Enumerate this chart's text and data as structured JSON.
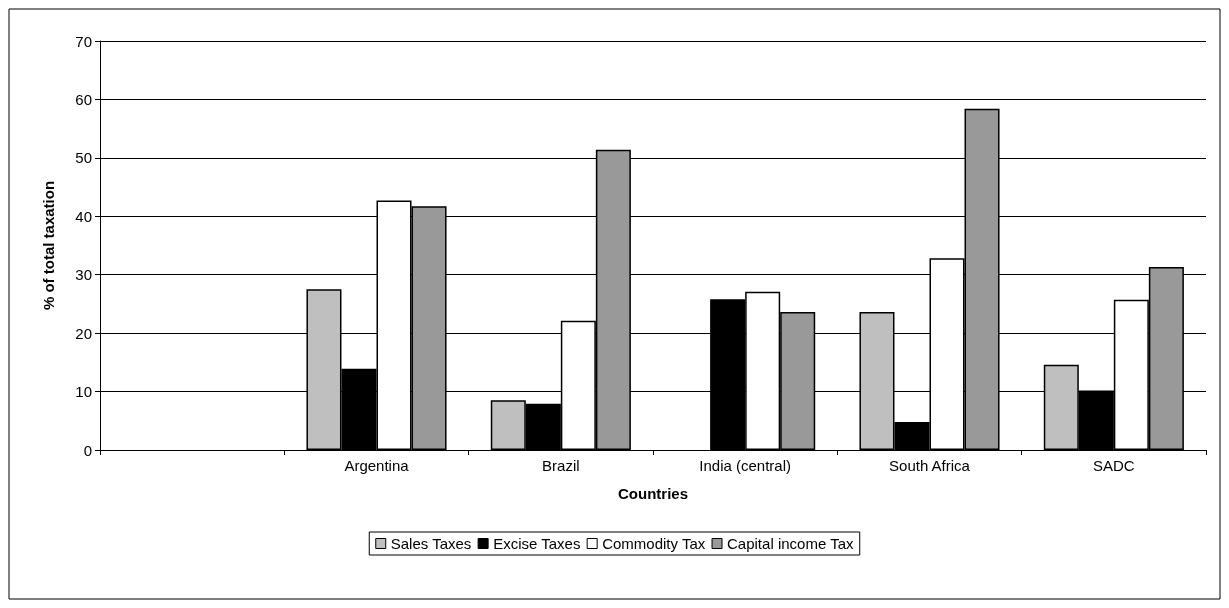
{
  "chart_data": {
    "type": "bar",
    "xlabel": "Countries",
    "ylabel": "% of total taxation",
    "categories": [
      null,
      "Argentina",
      "Brazil",
      "India (central)",
      "South Africa",
      "SADC"
    ],
    "series": [
      {
        "name": "Sales Taxes",
        "color": "#bfbfbf",
        "values": [
          null,
          27.5,
          8.5,
          0,
          23.6,
          14.6
        ]
      },
      {
        "name": "Excise Taxes",
        "color": "#000000",
        "values": [
          null,
          13.9,
          7.9,
          25.8,
          4.8,
          10.2
        ]
      },
      {
        "name": "Commodity Tax",
        "color": "#ffffff",
        "values": [
          null,
          42.7,
          22.1,
          27.1,
          32.8,
          25.7
        ]
      },
      {
        "name": "Capital income Tax",
        "color": "#999999",
        "values": [
          null,
          41.7,
          51.4,
          23.6,
          58.4,
          31.3
        ]
      }
    ],
    "ylim": [
      0,
      70
    ],
    "yticks": [
      0,
      10,
      20,
      30,
      40,
      50,
      60,
      70
    ],
    "grid": "y",
    "legend": "bottom"
  }
}
